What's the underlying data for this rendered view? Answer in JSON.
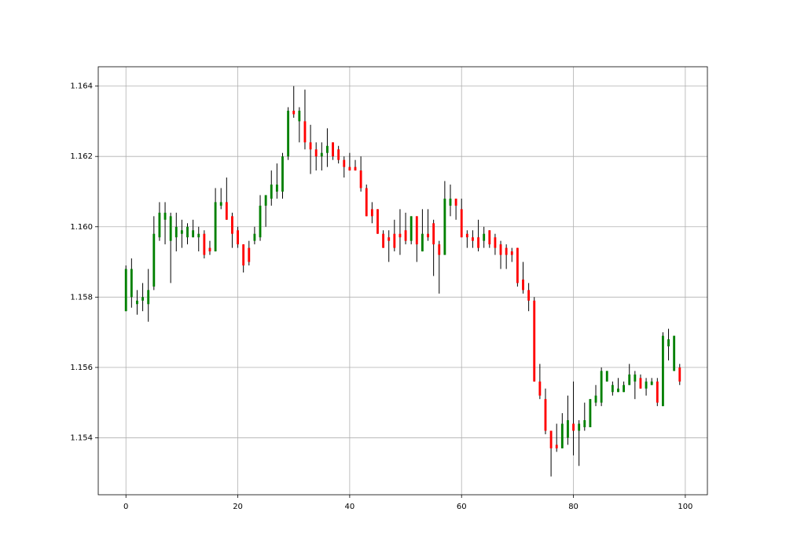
{
  "chart_data": {
    "type": "candlestick",
    "x": [
      0,
      1,
      2,
      3,
      4,
      5,
      6,
      7,
      8,
      9,
      10,
      11,
      12,
      13,
      14,
      15,
      16,
      17,
      18,
      19,
      20,
      21,
      22,
      23,
      24,
      25,
      26,
      27,
      28,
      29,
      30,
      31,
      32,
      33,
      34,
      35,
      36,
      37,
      38,
      39,
      40,
      41,
      42,
      43,
      44,
      45,
      46,
      47,
      48,
      49,
      50,
      51,
      52,
      53,
      54,
      55,
      56,
      57,
      58,
      59,
      60,
      61,
      62,
      63,
      64,
      65,
      66,
      67,
      68,
      69,
      70,
      71,
      72,
      73,
      74,
      75,
      76,
      77,
      78,
      79,
      80,
      81,
      82,
      83,
      84,
      85,
      86,
      87,
      88,
      89,
      90,
      91,
      92,
      93,
      94,
      95,
      96,
      97,
      98,
      99
    ],
    "open": [
      1.1576,
      1.158,
      1.1578,
      1.1579,
      1.1578,
      1.1583,
      1.1597,
      1.1602,
      1.1596,
      1.1597,
      1.1598,
      1.1597,
      1.1597,
      1.1597,
      1.1598,
      1.1594,
      1.1593,
      1.1606,
      1.1607,
      1.1603,
      1.1599,
      1.1595,
      1.1594,
      1.1596,
      1.1597,
      1.1606,
      1.1608,
      1.161,
      1.161,
      1.162,
      1.1633,
      1.163,
      1.163,
      1.1624,
      1.1622,
      1.162,
      1.1621,
      1.1624,
      1.1622,
      1.1619,
      1.1617,
      1.1617,
      1.1616,
      1.1611,
      1.1605,
      1.1605,
      1.1598,
      1.1597,
      1.1598,
      1.1598,
      1.1599,
      1.1596,
      1.1603,
      1.1593,
      1.1598,
      1.1601,
      1.1595,
      1.1592,
      1.1606,
      1.1608,
      1.1605,
      1.1598,
      1.1597,
      1.1597,
      1.1596,
      1.1599,
      1.1597,
      1.1595,
      1.1594,
      1.1593,
      1.1594,
      1.1585,
      1.1582,
      1.1579,
      1.1556,
      1.1551,
      1.1542,
      1.1538,
      1.1537,
      1.154,
      1.1544,
      1.1542,
      1.1543,
      1.1543,
      1.155,
      1.155,
      1.1556,
      1.1553,
      1.1553,
      1.1553,
      1.1555,
      1.1556,
      1.1557,
      1.1554,
      1.1555,
      1.1556,
      1.1549,
      1.1566,
      1.1559,
      1.156
    ],
    "high": [
      1.1589,
      1.1591,
      1.1582,
      1.1584,
      1.1588,
      1.1603,
      1.1607,
      1.1607,
      1.1604,
      1.1604,
      1.1602,
      1.1601,
      1.1602,
      1.16,
      1.1599,
      1.1596,
      1.1611,
      1.1611,
      1.1614,
      1.1604,
      1.16,
      1.1595,
      1.1596,
      1.16,
      1.1609,
      1.1609,
      1.1616,
      1.1618,
      1.1621,
      1.1634,
      1.164,
      1.1634,
      1.1639,
      1.1629,
      1.1624,
      1.1624,
      1.1628,
      1.1624,
      1.1623,
      1.162,
      1.1621,
      1.1619,
      1.162,
      1.1612,
      1.1607,
      1.1605,
      1.1599,
      1.1599,
      1.1602,
      1.1605,
      1.1604,
      1.1603,
      1.1603,
      1.1605,
      1.1605,
      1.1602,
      1.1596,
      1.1613,
      1.1612,
      1.1608,
      1.1608,
      1.1599,
      1.1599,
      1.1602,
      1.16,
      1.1599,
      1.1598,
      1.1596,
      1.1595,
      1.1594,
      1.1594,
      1.159,
      1.1584,
      1.158,
      1.1561,
      1.1554,
      1.1542,
      1.1544,
      1.1547,
      1.1552,
      1.1556,
      1.1545,
      1.155,
      1.1551,
      1.1555,
      1.156,
      1.1559,
      1.1556,
      1.1557,
      1.1556,
      1.1561,
      1.1559,
      1.1558,
      1.1557,
      1.1557,
      1.1557,
      1.157,
      1.1571,
      1.1569,
      1.1561
    ],
    "low": [
      1.1576,
      1.1577,
      1.1575,
      1.1576,
      1.1573,
      1.1582,
      1.1596,
      1.1595,
      1.1584,
      1.1593,
      1.1594,
      1.1595,
      1.1597,
      1.1593,
      1.1591,
      1.1592,
      1.1593,
      1.1605,
      1.1602,
      1.1594,
      1.1594,
      1.1587,
      1.1589,
      1.1595,
      1.1596,
      1.16,
      1.1606,
      1.1608,
      1.1608,
      1.1619,
      1.1631,
      1.1624,
      1.1622,
      1.1615,
      1.1616,
      1.1616,
      1.1617,
      1.1619,
      1.1618,
      1.1614,
      1.1616,
      1.1616,
      1.161,
      1.1603,
      1.1601,
      1.1598,
      1.1594,
      1.159,
      1.1593,
      1.1592,
      1.1595,
      1.1595,
      1.159,
      1.1593,
      1.1596,
      1.1586,
      1.1581,
      1.1592,
      1.1603,
      1.1602,
      1.1597,
      1.1594,
      1.1594,
      1.1593,
      1.1594,
      1.1594,
      1.1592,
      1.1588,
      1.1588,
      1.159,
      1.1583,
      1.1581,
      1.1576,
      1.1556,
      1.1551,
      1.1541,
      1.1529,
      1.1536,
      1.1537,
      1.1538,
      1.1535,
      1.1532,
      1.1542,
      1.1543,
      1.1549,
      1.1549,
      1.1556,
      1.1552,
      1.1553,
      1.1553,
      1.1555,
      1.1551,
      1.1554,
      1.1552,
      1.1555,
      1.1549,
      1.1549,
      1.1562,
      1.1559,
      1.1555
    ],
    "close": [
      1.1588,
      1.1588,
      1.1579,
      1.158,
      1.1582,
      1.1598,
      1.1604,
      1.1604,
      1.1603,
      1.16,
      1.1599,
      1.16,
      1.1599,
      1.1598,
      1.1592,
      1.1593,
      1.1607,
      1.1607,
      1.1602,
      1.1598,
      1.1595,
      1.1589,
      1.159,
      1.1598,
      1.1606,
      1.1609,
      1.1612,
      1.1612,
      1.162,
      1.1633,
      1.1632,
      1.1633,
      1.1624,
      1.1622,
      1.162,
      1.1621,
      1.1623,
      1.162,
      1.1619,
      1.1617,
      1.1616,
      1.1616,
      1.1611,
      1.1603,
      1.1603,
      1.1598,
      1.1594,
      1.1596,
      1.1594,
      1.1597,
      1.1596,
      1.1603,
      1.1595,
      1.1598,
      1.1597,
      1.1595,
      1.1592,
      1.1608,
      1.1608,
      1.1606,
      1.1597,
      1.1597,
      1.1596,
      1.1594,
      1.1598,
      1.1595,
      1.1594,
      1.1592,
      1.1592,
      1.1592,
      1.1584,
      1.1582,
      1.1579,
      1.1556,
      1.1552,
      1.1542,
      1.1537,
      1.1537,
      1.1544,
      1.1545,
      1.1542,
      1.1544,
      1.1545,
      1.1551,
      1.1552,
      1.1559,
      1.1559,
      1.1555,
      1.1554,
      1.1555,
      1.1558,
      1.1558,
      1.1554,
      1.1556,
      1.1556,
      1.155,
      1.1569,
      1.1568,
      1.1569,
      1.1556
    ],
    "up_color": "#008000",
    "down_color": "#ff0000",
    "wick_color": "#000000",
    "xlim": [
      -4.95,
      103.95
    ],
    "xticks": [
      0,
      20,
      40,
      60,
      80,
      100
    ],
    "ylim": [
      1.15238,
      1.16455
    ],
    "yticks": [
      1.154,
      1.156,
      1.158,
      {
        "value": 1.16,
        "label": "1.160"
      },
      1.162,
      1.164
    ],
    "grid": true
  }
}
